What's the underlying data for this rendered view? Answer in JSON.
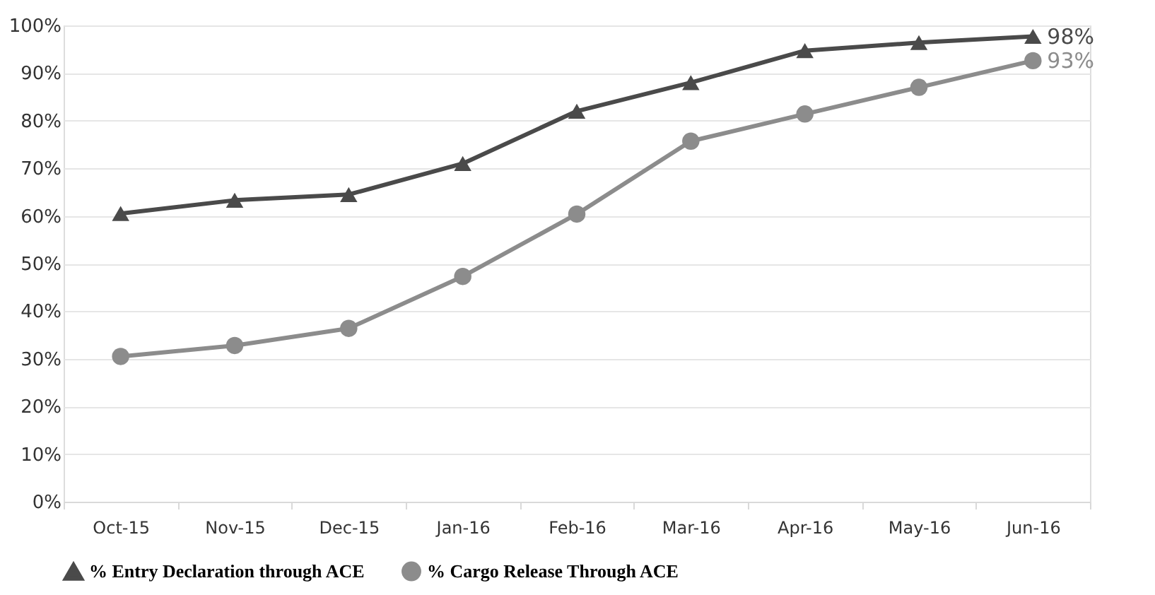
{
  "chart_data": {
    "type": "line",
    "categories": [
      "Oct-15",
      "Nov-15",
      "Dec-15",
      "Jan-16",
      "Feb-16",
      "Mar-16",
      "Apr-16",
      "May-16",
      "Jun-16"
    ],
    "series": [
      {
        "name": "% Entry Declaration through ACE",
        "color": "#4a4a4a",
        "marker": "triangle",
        "values": [
          60.5,
          63.3,
          64.5,
          71,
          82,
          88,
          94.7,
          96.4,
          97.7
        ],
        "value_labels": [
          null,
          null,
          null,
          null,
          null,
          null,
          null,
          null,
          "98%"
        ]
      },
      {
        "name": "% Cargo Release Through ACE",
        "color": "#8c8c8c",
        "marker": "circle",
        "values": [
          30.5,
          32.8,
          36.4,
          47.3,
          60.4,
          75.7,
          81.4,
          87,
          92.6
        ],
        "value_labels": [
          null,
          null,
          null,
          null,
          null,
          null,
          null,
          null,
          "93%"
        ]
      }
    ],
    "ylim": [
      0,
      100
    ],
    "yticks": [
      {
        "value": 0,
        "label": "0%"
      },
      {
        "value": 10,
        "label": "10%"
      },
      {
        "value": 20,
        "label": "20%"
      },
      {
        "value": 30,
        "label": "30%"
      },
      {
        "value": 40,
        "label": "40%"
      },
      {
        "value": 50,
        "label": "50%"
      },
      {
        "value": 60,
        "label": "60%"
      },
      {
        "value": 70,
        "label": "70%"
      },
      {
        "value": 80,
        "label": "80%"
      },
      {
        "value": 90,
        "label": "90%"
      },
      {
        "value": 100,
        "label": "100%"
      }
    ],
    "grid": "y",
    "legend": "bottom",
    "line_style": "solid"
  }
}
